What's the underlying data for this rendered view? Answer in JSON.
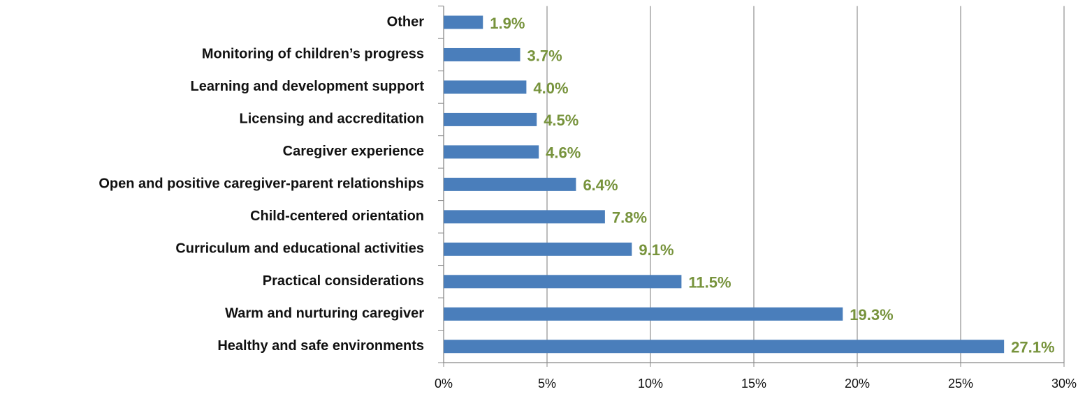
{
  "chart_data": {
    "type": "bar",
    "orientation": "horizontal",
    "categories": [
      "Other",
      "Monitoring of children’s  progress",
      "Learning and development support",
      "Licensing and accreditation",
      "Caregiver experience",
      "Open and positive caregiver-parent relationships",
      "Child-centered orientation",
      "Curriculum and educational activities",
      "Practical considerations",
      "Warm and nurturing caregiver",
      "Healthy and safe environments"
    ],
    "values": [
      1.9,
      3.7,
      4.0,
      4.5,
      4.6,
      6.4,
      7.8,
      9.1,
      11.5,
      19.3,
      27.1
    ],
    "value_labels": [
      "1.9%",
      "3.7%",
      "4.0%",
      "4.5%",
      "4.6%",
      "6.4%",
      "7.8%",
      "9.1%",
      "11.5%",
      "19.3%",
      "27.1%"
    ],
    "color": "#4a7ebb",
    "label_color": "#77933c",
    "xlim": [
      0,
      30
    ],
    "xticks": [
      {
        "value": 0,
        "label": "0%"
      },
      {
        "value": 5,
        "label": "5%"
      },
      {
        "value": 10,
        "label": "10%"
      },
      {
        "value": 15,
        "label": "15%"
      },
      {
        "value": 20,
        "label": "20%"
      },
      {
        "value": 25,
        "label": "25%"
      },
      {
        "value": 30,
        "label": "30%"
      }
    ],
    "grid": true
  }
}
